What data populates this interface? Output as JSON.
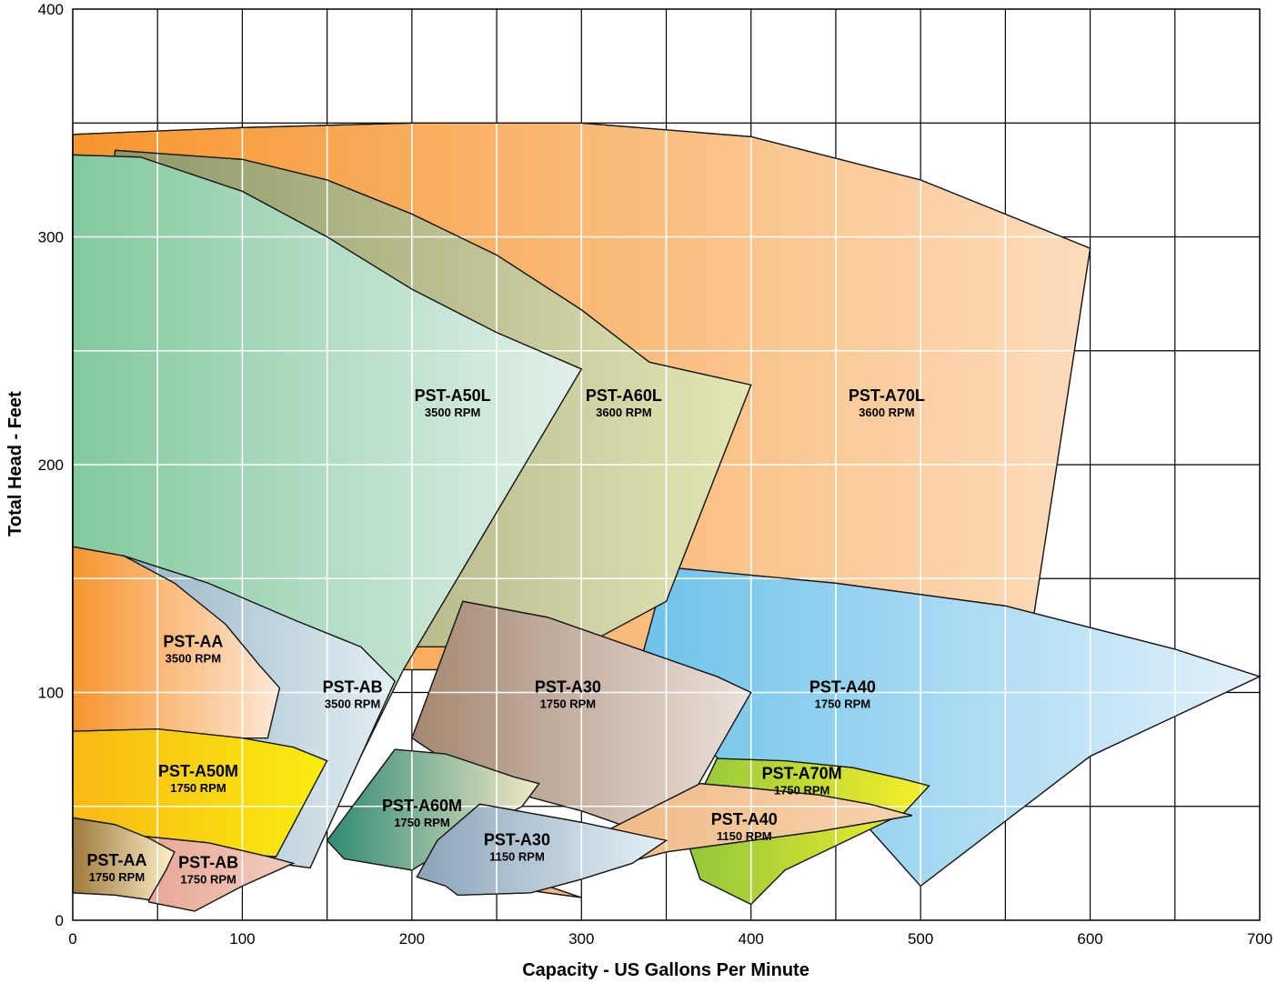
{
  "chart_data": {
    "type": "area",
    "xlabel": "Capacity - US Gallons Per Minute",
    "ylabel": "Total Head - Feet",
    "xlim": [
      0,
      700
    ],
    "ylim": [
      0,
      400
    ],
    "x_ticks": [
      0,
      100,
      200,
      300,
      400,
      500,
      600,
      700
    ],
    "y_ticks": [
      0,
      100,
      200,
      300,
      400
    ],
    "grid": true,
    "zones": [
      {
        "name": "PST-A70L",
        "rpm": "3600 RPM",
        "label_at": [
          480,
          228
        ],
        "colors": [
          "#f7952e",
          "#fcdcbc"
        ],
        "boundary": [
          [
            0,
            345
          ],
          [
            100,
            348
          ],
          [
            200,
            350
          ],
          [
            300,
            350
          ],
          [
            400,
            344
          ],
          [
            500,
            325
          ],
          [
            600,
            295
          ],
          [
            567,
            135
          ],
          [
            400,
            110
          ],
          [
            0,
            110
          ]
        ]
      },
      {
        "name": "PST-A40",
        "rpm": "1750 RPM",
        "label_at": [
          454,
          100
        ],
        "colors": [
          "#6cc2ea",
          "#e3f1fb"
        ],
        "boundary": [
          [
            350,
            155
          ],
          [
            450,
            148
          ],
          [
            550,
            138
          ],
          [
            650,
            119
          ],
          [
            700,
            107
          ],
          [
            600,
            72
          ],
          [
            500,
            15
          ],
          [
            470,
            40
          ],
          [
            400,
            60
          ],
          [
            330,
            100
          ]
        ]
      },
      {
        "name": "PST-A60L",
        "rpm": "3600 RPM",
        "label_at": [
          325,
          228
        ],
        "colors": [
          "#8a9160",
          "#e4e6b6"
        ],
        "boundary": [
          [
            25,
            338
          ],
          [
            100,
            334
          ],
          [
            150,
            325
          ],
          [
            200,
            310
          ],
          [
            250,
            292
          ],
          [
            300,
            268
          ],
          [
            340,
            245
          ],
          [
            400,
            235
          ],
          [
            350,
            140
          ],
          [
            300,
            120
          ],
          [
            0,
            120
          ]
        ]
      },
      {
        "name": "PST-A50L",
        "rpm": "3500 RPM",
        "label_at": [
          224,
          228
        ],
        "colors": [
          "#82c99e",
          "#e2f0ea"
        ],
        "boundary": [
          [
            0,
            336
          ],
          [
            40,
            335
          ],
          [
            100,
            320
          ],
          [
            150,
            300
          ],
          [
            200,
            277
          ],
          [
            250,
            258
          ],
          [
            300,
            242
          ],
          [
            195,
            110
          ],
          [
            160,
            57
          ],
          [
            0,
            57
          ]
        ]
      },
      {
        "name": "PST-A30",
        "rpm": "1750 RPM",
        "label_at": [
          292,
          100
        ],
        "colors": [
          "#a48770",
          "#ebe0da"
        ],
        "boundary": [
          [
            230,
            140
          ],
          [
            280,
            133
          ],
          [
            330,
            120
          ],
          [
            380,
            107
          ],
          [
            400,
            100
          ],
          [
            350,
            35
          ],
          [
            300,
            48
          ],
          [
            240,
            60
          ],
          [
            200,
            80
          ]
        ]
      },
      {
        "name": "PST-AB",
        "rpm": "3500 RPM",
        "label_at": [
          165,
          100
        ],
        "colors": [
          "#94b3c4",
          "#e3eff3"
        ],
        "boundary": [
          [
            30,
            160
          ],
          [
            80,
            148
          ],
          [
            130,
            132
          ],
          [
            170,
            120
          ],
          [
            190,
            105
          ],
          [
            140,
            23
          ],
          [
            120,
            25
          ],
          [
            110,
            50
          ],
          [
            100,
            90
          ]
        ]
      },
      {
        "name": "PST-AA",
        "rpm": "3500 RPM",
        "label_at": [
          71,
          120
        ],
        "colors": [
          "#f7952e",
          "#fde8d7"
        ],
        "boundary": [
          [
            0,
            164
          ],
          [
            30,
            160
          ],
          [
            60,
            148
          ],
          [
            90,
            130
          ],
          [
            110,
            112
          ],
          [
            122,
            102
          ],
          [
            115,
            80
          ],
          [
            0,
            80
          ]
        ]
      },
      {
        "name": "PST-A70M",
        "rpm": "1750 RPM",
        "label_at": [
          430,
          62
        ],
        "colors": [
          "#8fc63c",
          "#f7ef2a"
        ],
        "boundary": [
          [
            380,
            71
          ],
          [
            420,
            70
          ],
          [
            460,
            67
          ],
          [
            490,
            62
          ],
          [
            505,
            59
          ],
          [
            490,
            47
          ],
          [
            420,
            22
          ],
          [
            400,
            7
          ],
          [
            370,
            18
          ],
          [
            360,
            40
          ]
        ]
      },
      {
        "name": "PST-A40",
        "rpm": "1150 RPM",
        "label_at": [
          396,
          42
        ],
        "colors": [
          "#f0b27a",
          "#f6d3ae"
        ],
        "boundary": [
          [
            370,
            60
          ],
          [
            400,
            58
          ],
          [
            440,
            55
          ],
          [
            470,
            51
          ],
          [
            495,
            46
          ],
          [
            440,
            39
          ],
          [
            350,
            30
          ],
          [
            300,
            20
          ],
          [
            280,
            15
          ],
          [
            300,
            10
          ],
          [
            250,
            15
          ]
        ]
      },
      {
        "name": "PST-A60M",
        "rpm": "1750 RPM",
        "label_at": [
          206,
          48
        ],
        "colors": [
          "#2f8a75",
          "#f2e8c6"
        ],
        "boundary": [
          [
            190,
            75
          ],
          [
            220,
            73
          ],
          [
            260,
            63
          ],
          [
            275,
            60
          ],
          [
            265,
            50
          ],
          [
            240,
            40
          ],
          [
            200,
            22
          ],
          [
            160,
            27
          ],
          [
            150,
            35
          ],
          [
            170,
            55
          ]
        ]
      },
      {
        "name": "PST-A50M",
        "rpm": "1750 RPM",
        "label_at": [
          74,
          63
        ],
        "colors": [
          "#f9b915",
          "#f9ed10"
        ],
        "boundary": [
          [
            0,
            83
          ],
          [
            50,
            84
          ],
          [
            100,
            80
          ],
          [
            130,
            76
          ],
          [
            150,
            70
          ],
          [
            120,
            28
          ],
          [
            60,
            30
          ],
          [
            0,
            32
          ]
        ]
      },
      {
        "name": "PST-A30",
        "rpm": "1150 RPM",
        "label_at": [
          262,
          33
        ],
        "colors": [
          "#8aa3b8",
          "#e6f1f8"
        ],
        "boundary": [
          [
            240,
            51
          ],
          [
            300,
            43
          ],
          [
            350,
            35
          ],
          [
            330,
            25
          ],
          [
            300,
            18
          ],
          [
            270,
            12
          ],
          [
            227,
            11
          ],
          [
            220,
            15
          ],
          [
            203,
            19
          ],
          [
            215,
            35
          ]
        ]
      },
      {
        "name": "PST-AB",
        "rpm": "1750 RPM",
        "label_at": [
          80,
          23
        ],
        "colors": [
          "#e8a593",
          "#f0cdbf"
        ],
        "boundary": [
          [
            40,
            37
          ],
          [
            80,
            34
          ],
          [
            115,
            28
          ],
          [
            130,
            25
          ],
          [
            100,
            15
          ],
          [
            72,
            4
          ],
          [
            45,
            8
          ],
          [
            40,
            18
          ]
        ]
      },
      {
        "name": "PST-AA",
        "rpm": "1750 RPM",
        "label_at": [
          26,
          24
        ],
        "colors": [
          "#9e7a3c",
          "#fdf0c8"
        ],
        "boundary": [
          [
            0,
            45
          ],
          [
            25,
            42
          ],
          [
            45,
            36
          ],
          [
            60,
            30
          ],
          [
            55,
            22
          ],
          [
            45,
            9
          ],
          [
            25,
            11
          ],
          [
            0,
            12
          ]
        ]
      }
    ]
  }
}
